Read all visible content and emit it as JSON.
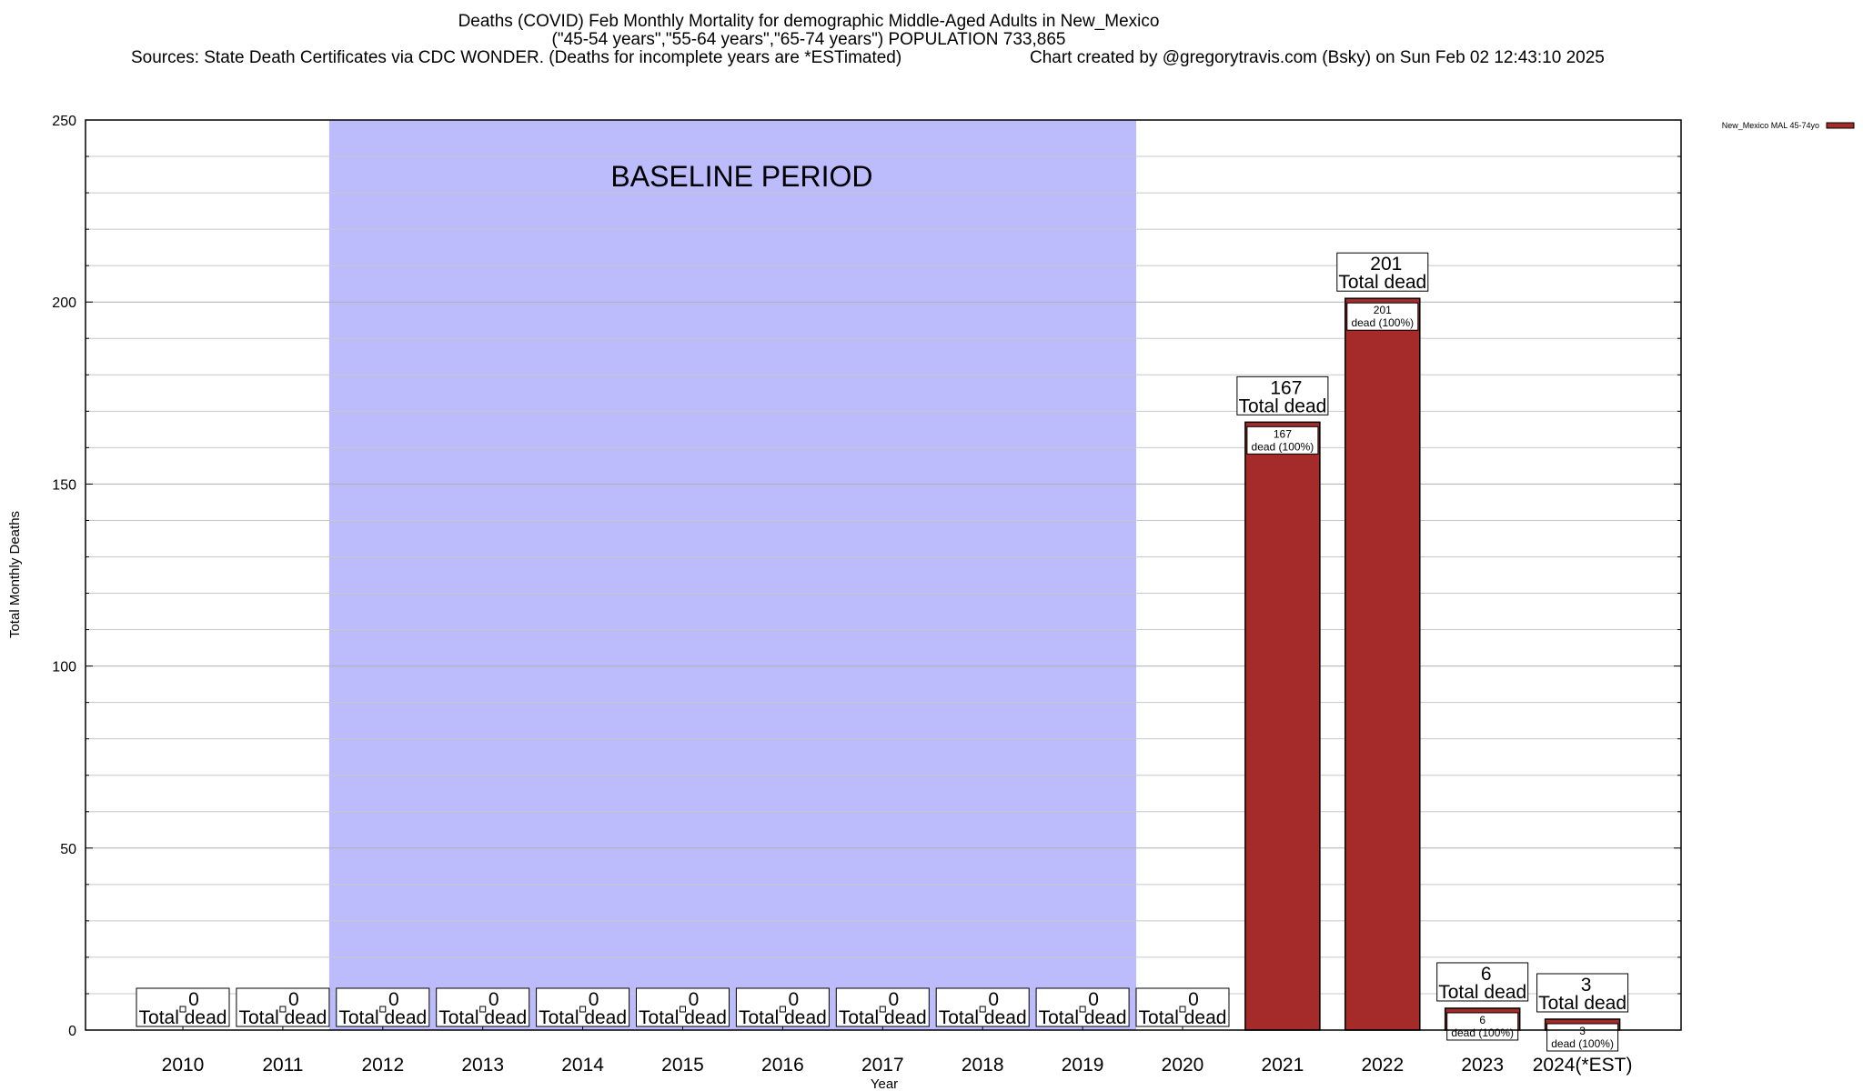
{
  "chart_data": {
    "type": "bar",
    "title": "Deaths (COVID) Feb Monthly Mortality for demographic Middle-Aged Adults in New_Mexico",
    "subtitle": "(\"45-54 years\",\"55-64 years\",\"65-74 years\") POPULATION 733,865",
    "sources": "Sources: State Death Certificates via CDC WONDER. (Deaths for incomplete years are *ESTimated)",
    "credit": "Chart created by @gregorytravis.com (Bsky) on Sun Feb 02 12:43:10 2025",
    "xlabel": "Year",
    "ylabel": "Total Monthly Deaths",
    "ylim": [
      0,
      250
    ],
    "yticks": [
      0,
      50,
      100,
      150,
      200,
      250
    ],
    "grid": true,
    "legend_placement": "top-right",
    "categories": [
      "2010",
      "2011",
      "2012",
      "2013",
      "2014",
      "2015",
      "2016",
      "2017",
      "2018",
      "2019",
      "2020",
      "2021",
      "2022",
      "2023",
      "2024(*EST)"
    ],
    "series": [
      {
        "name": "New_Mexico MAL 45-74yo",
        "color": "#a52a2a",
        "values": [
          0,
          0,
          0,
          0,
          0,
          0,
          0,
          0,
          0,
          0,
          0,
          167,
          201,
          6,
          3
        ]
      }
    ],
    "total_label": "Total dead",
    "inner_label": "dead (100%)",
    "baseline": {
      "label": "BASELINE PERIOD",
      "start": "2012",
      "end": "2019",
      "color": "#bcbcfc"
    }
  }
}
